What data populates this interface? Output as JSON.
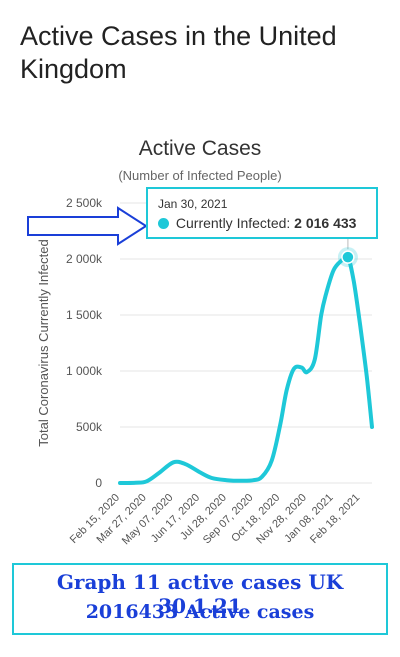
{
  "page": {
    "title": "Active Cases in the United Kingdom"
  },
  "chart_data": {
    "type": "line",
    "title": "Active Cases",
    "subtitle": "(Number of Infected People)",
    "ylabel": "Total Coronavirus Currently Infected",
    "xlabel": "",
    "ylim": [
      0,
      2500000
    ],
    "y_ticks": [
      0,
      500000,
      1000000,
      1500000,
      2000000,
      2500000
    ],
    "y_tick_labels": [
      "0",
      "500k",
      "1 000k",
      "1 500k",
      "2 000k",
      "2 500k"
    ],
    "x_tick_labels": [
      "Feb 15, 2020",
      "Mar 27, 2020",
      "May 07, 2020",
      "Jun 17, 2020",
      "Jul 28, 2020",
      "Sep 07, 2020",
      "Oct 18, 2020",
      "Nov 28, 2020",
      "Jan 08, 2021",
      "Feb 18, 2021"
    ],
    "grid": true,
    "series": [
      {
        "color": "#1ec8d8",
        "x": [
          "2020-02-15",
          "2020-03-10",
          "2020-03-27",
          "2020-04-15",
          "2020-05-07",
          "2020-05-25",
          "2020-06-17",
          "2020-07-05",
          "2020-07-28",
          "2020-08-20",
          "2020-09-07",
          "2020-09-20",
          "2020-10-05",
          "2020-10-18",
          "2020-10-28",
          "2020-11-08",
          "2020-11-20",
          "2020-11-28",
          "2020-12-10",
          "2020-12-20",
          "2020-12-28",
          "2021-01-08",
          "2021-01-20",
          "2021-01-30",
          "2021-02-08",
          "2021-02-18",
          "2021-02-28",
          "2021-03-08"
        ],
        "values": [
          0,
          2000,
          15000,
          90000,
          185000,
          170000,
          95000,
          45000,
          25000,
          20000,
          25000,
          55000,
          200000,
          520000,
          830000,
          1020000,
          1030000,
          990000,
          1100000,
          1500000,
          1700000,
          1900000,
          1985000,
          2016433,
          1800000,
          1400000,
          950000,
          500000
        ]
      }
    ],
    "tooltip": {
      "date": "Jan 30, 2021",
      "label": "Currently Infected:",
      "value": "2 016 433",
      "x": "2021-01-30",
      "y": 2016433
    }
  },
  "caption": {
    "line1": "Graph 11 active cases UK 30.1.21",
    "line2": "2016433 Active cases"
  },
  "colors": {
    "series": "#1ec8d8",
    "caption_text": "#1a3fd8",
    "annotation": "#1ec8d8"
  }
}
